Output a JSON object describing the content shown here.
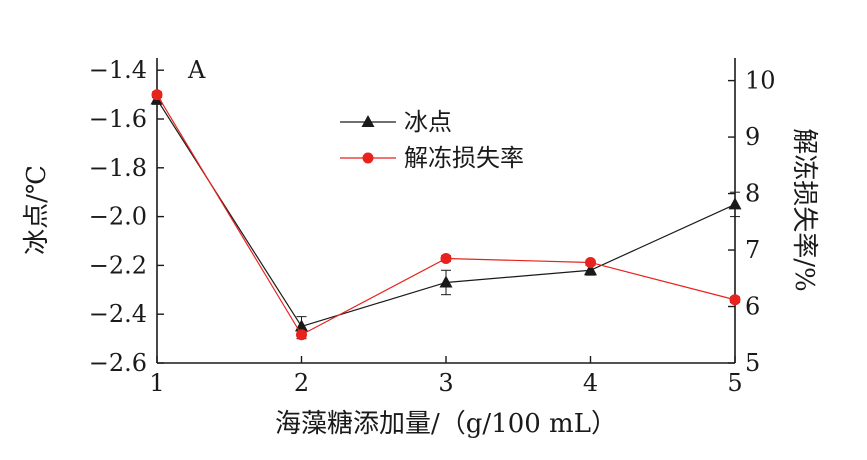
{
  "chart_data": {
    "type": "line",
    "panel_label": "A",
    "x": [
      1,
      2,
      3,
      4,
      5
    ],
    "xlabel": "海藻糖添加量/（g/100 mL）",
    "xlim": [
      1,
      5
    ],
    "x_ticks": [
      "1",
      "2",
      "3",
      "4",
      "5"
    ],
    "y_left": {
      "label": "冰点/℃",
      "lim": [
        -2.6,
        -1.35
      ],
      "ticks": [
        "−1.4",
        "−1.6",
        "−1.8",
        "−2.0",
        "−2.2",
        "−2.4",
        "−2.6"
      ],
      "tick_values": [
        -1.4,
        -1.6,
        -1.8,
        -2.0,
        -2.2,
        -2.4,
        -2.6
      ]
    },
    "y_right": {
      "label": "解冻损失率/%",
      "lim": [
        5,
        10.4
      ],
      "ticks": [
        "10",
        "9",
        "8",
        "7",
        "6",
        "5"
      ],
      "tick_values": [
        10,
        9,
        8,
        7,
        6,
        5
      ]
    },
    "series": [
      {
        "name": "冰点",
        "axis": "left",
        "marker": "triangle",
        "color": "#1a1a1a",
        "values": [
          -1.52,
          -2.45,
          -2.27,
          -2.22,
          -1.95
        ],
        "errors": [
          0.02,
          0.04,
          0.05,
          0.02,
          0.05
        ]
      },
      {
        "name": "解冻损失率",
        "axis": "right",
        "marker": "circle",
        "color": "#e8231e",
        "values": [
          9.75,
          5.5,
          6.85,
          6.78,
          6.12
        ],
        "errors": [
          0.05,
          0.07,
          0.05,
          0.04,
          0.05
        ]
      }
    ],
    "legend": "upper-center",
    "grid": false
  }
}
